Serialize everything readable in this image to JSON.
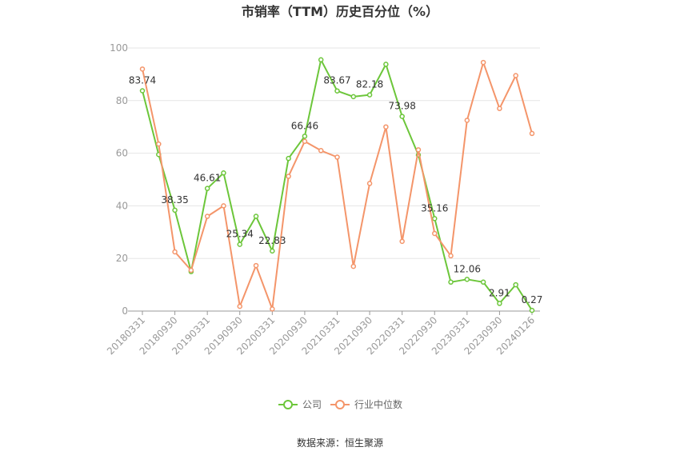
{
  "chart_data": {
    "type": "line",
    "title": "市销率（TTM）历史百分位（%）",
    "xlabel": "",
    "ylabel": "",
    "ylim": [
      0,
      100
    ],
    "yticks": [
      0,
      20,
      40,
      60,
      80,
      100
    ],
    "x": [
      "20180331",
      "20180630",
      "20180930",
      "20181231",
      "20190331",
      "20190630",
      "20190930",
      "20191231",
      "20200331",
      "20200630",
      "20200930",
      "20201231",
      "20210331",
      "20210630",
      "20210930",
      "20211231",
      "20220331",
      "20220630",
      "20220930",
      "20221231",
      "20230331",
      "20230630",
      "20230930",
      "20231231",
      "20240126"
    ],
    "xtick_labels": [
      "20180331",
      "20180930",
      "20190331",
      "20190930",
      "20200331",
      "20200930",
      "20210331",
      "20210930",
      "20220331",
      "20220930",
      "20230331",
      "20230930",
      "20240126"
    ],
    "grid": true,
    "legend_position": "bottom",
    "series": [
      {
        "name": "公司",
        "color": "#6cc63a",
        "values": [
          83.74,
          59.5,
          38.35,
          15.0,
          46.61,
          52.5,
          25.34,
          36.0,
          22.83,
          58.0,
          66.46,
          95.5,
          83.67,
          81.5,
          82.18,
          93.8,
          73.98,
          59.3,
          35.16,
          11.0,
          12.06,
          11.0,
          2.91,
          10.0,
          0.27
        ],
        "labels": {
          "0": "83.74",
          "2": "38.35",
          "4": "46.61",
          "6": "25.34",
          "8": "22.83",
          "10": "66.46",
          "12": "83.67",
          "14": "82.18",
          "16": "73.98",
          "18": "35.16",
          "20": "12.06",
          "22": "2.91",
          "24": "0.27"
        }
      },
      {
        "name": "行业中位数",
        "color": "#f4956a",
        "values": [
          92.0,
          63.5,
          22.5,
          15.5,
          36.0,
          40.0,
          1.8,
          17.3,
          0.8,
          51.2,
          64.5,
          61.0,
          58.5,
          17.0,
          48.5,
          70.0,
          26.5,
          61.3,
          29.5,
          21.0,
          72.5,
          94.5,
          77.0,
          89.5,
          67.5
        ]
      }
    ]
  },
  "source": "数据来源：恒生聚源"
}
